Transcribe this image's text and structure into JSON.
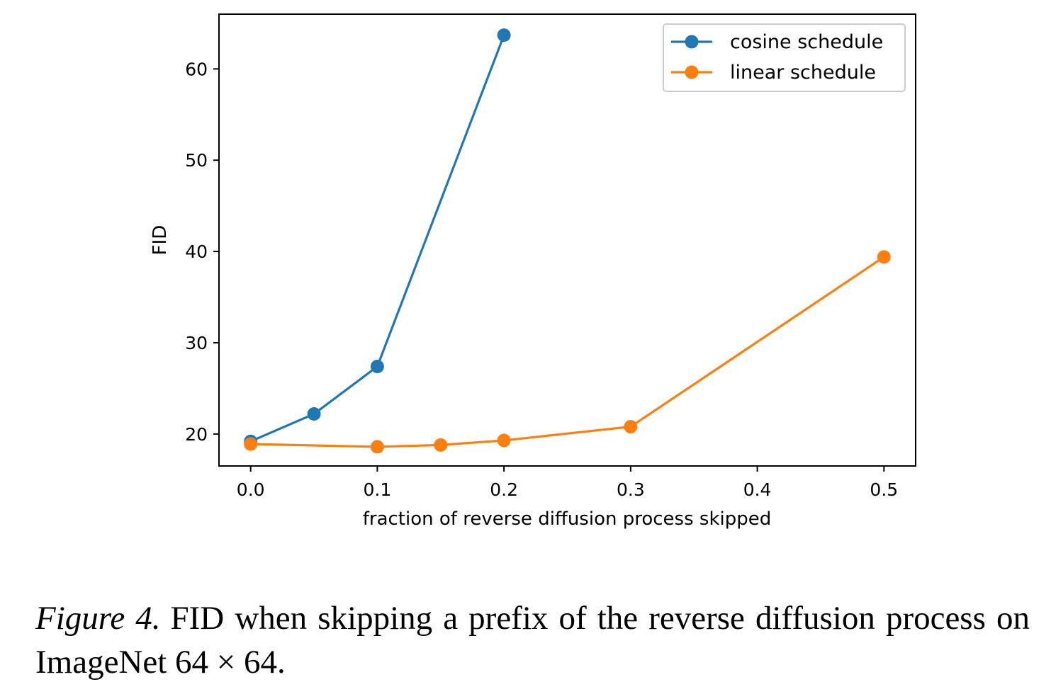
{
  "chart_data": {
    "type": "line",
    "title": "",
    "xlabel": "fraction of reverse diffusion process skipped",
    "ylabel": "FID",
    "xlim": [
      -0.025,
      0.525
    ],
    "ylim": [
      16.5,
      66
    ],
    "xticks": [
      0.0,
      0.1,
      0.2,
      0.3,
      0.4,
      0.5
    ],
    "xtick_labels": [
      "0.0",
      "0.1",
      "0.2",
      "0.3",
      "0.4",
      "0.5"
    ],
    "yticks": [
      20,
      30,
      40,
      50,
      60
    ],
    "ytick_labels": [
      "20",
      "30",
      "40",
      "50",
      "60"
    ],
    "grid": false,
    "legend_position": "top-right",
    "series": [
      {
        "name": "cosine schedule",
        "color": "#1f77b4",
        "x": [
          0.0,
          0.05,
          0.1,
          0.2
        ],
        "y": [
          19.2,
          22.2,
          27.4,
          63.7
        ]
      },
      {
        "name": "linear schedule",
        "color": "#ff7f0e",
        "x": [
          0.0,
          0.1,
          0.15,
          0.2,
          0.3,
          0.5
        ],
        "y": [
          18.9,
          18.6,
          18.8,
          19.3,
          20.8,
          39.4
        ]
      }
    ]
  },
  "caption": {
    "label": "Figure 4.",
    "text": "FID when skipping a prefix of the reverse diffusion process on ImageNet 64 × 64."
  }
}
